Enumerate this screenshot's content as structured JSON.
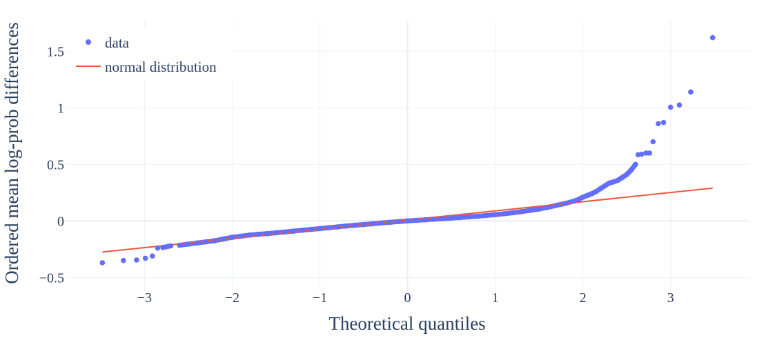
{
  "chart_data": {
    "type": "scatter",
    "xlabel": "Theoretical quantiles",
    "ylabel": "Ordered mean log-prob differences",
    "xlim": [
      -3.9,
      3.9
    ],
    "ylim": [
      -0.62,
      1.77
    ],
    "x_ticks": [
      -3,
      -2,
      -1,
      0,
      1,
      2,
      3
    ],
    "x_tick_labels": [
      "−3",
      "−2",
      "−1",
      "0",
      "1",
      "2",
      "3"
    ],
    "y_ticks": [
      -0.5,
      0,
      0.5,
      1,
      1.5
    ],
    "y_tick_labels": [
      "−0.5",
      "0",
      "0.5",
      "1",
      "1.5"
    ],
    "grid": true,
    "legend_position": "top-left",
    "colors": {
      "data": "#636efa",
      "normal": "#ef553b",
      "grid": "#ebf0f8",
      "zeroline": "#e8eef7",
      "text": "#2a3f5f"
    },
    "series": [
      {
        "name": "data",
        "mode": "markers",
        "x": [
          -3.48,
          -3.24,
          -3.09,
          -2.99,
          -2.91,
          -2.85,
          -2.79,
          -2.76,
          -2.73,
          -2.7,
          -2.6,
          -2.5,
          -2.4,
          -2.3,
          -2.2,
          -2.1,
          -2.0,
          -1.9,
          -1.8,
          -1.7,
          -1.6,
          -1.5,
          -1.4,
          -1.3,
          -1.2,
          -1.1,
          -1.0,
          -0.9,
          -0.8,
          -0.7,
          -0.6,
          -0.5,
          -0.4,
          -0.3,
          -0.2,
          -0.1,
          0.0,
          0.1,
          0.2,
          0.3,
          0.4,
          0.5,
          0.6,
          0.7,
          0.8,
          0.9,
          1.0,
          1.1,
          1.2,
          1.3,
          1.4,
          1.5,
          1.6,
          1.7,
          1.8,
          1.9,
          1.95,
          2.0,
          2.05,
          2.1,
          2.15,
          2.2,
          2.25,
          2.3,
          2.35,
          2.4,
          2.45,
          2.5,
          2.55,
          2.6,
          2.63,
          2.67,
          2.72,
          2.76,
          2.8,
          2.86,
          2.92,
          3.0,
          3.1,
          3.23,
          3.48
        ],
        "y": [
          -0.37,
          -0.35,
          -0.345,
          -0.33,
          -0.31,
          -0.24,
          -0.235,
          -0.23,
          -0.225,
          -0.22,
          -0.215,
          -0.205,
          -0.195,
          -0.185,
          -0.175,
          -0.16,
          -0.145,
          -0.135,
          -0.125,
          -0.118,
          -0.112,
          -0.105,
          -0.098,
          -0.09,
          -0.082,
          -0.075,
          -0.068,
          -0.06,
          -0.053,
          -0.045,
          -0.038,
          -0.032,
          -0.025,
          -0.018,
          -0.012,
          -0.006,
          0.0,
          0.005,
          0.01,
          0.015,
          0.02,
          0.025,
          0.03,
          0.036,
          0.042,
          0.048,
          0.055,
          0.063,
          0.072,
          0.082,
          0.093,
          0.105,
          0.12,
          0.138,
          0.155,
          0.175,
          0.19,
          0.21,
          0.225,
          0.24,
          0.26,
          0.285,
          0.31,
          0.335,
          0.345,
          0.36,
          0.385,
          0.41,
          0.45,
          0.5,
          0.585,
          0.59,
          0.6,
          0.6,
          0.7,
          0.86,
          0.87,
          1.005,
          1.025,
          1.14,
          1.62
        ]
      },
      {
        "name": "normal distribution",
        "mode": "lines",
        "x": [
          -3.48,
          3.48
        ],
        "y": [
          -0.275,
          0.29
        ]
      }
    ]
  }
}
